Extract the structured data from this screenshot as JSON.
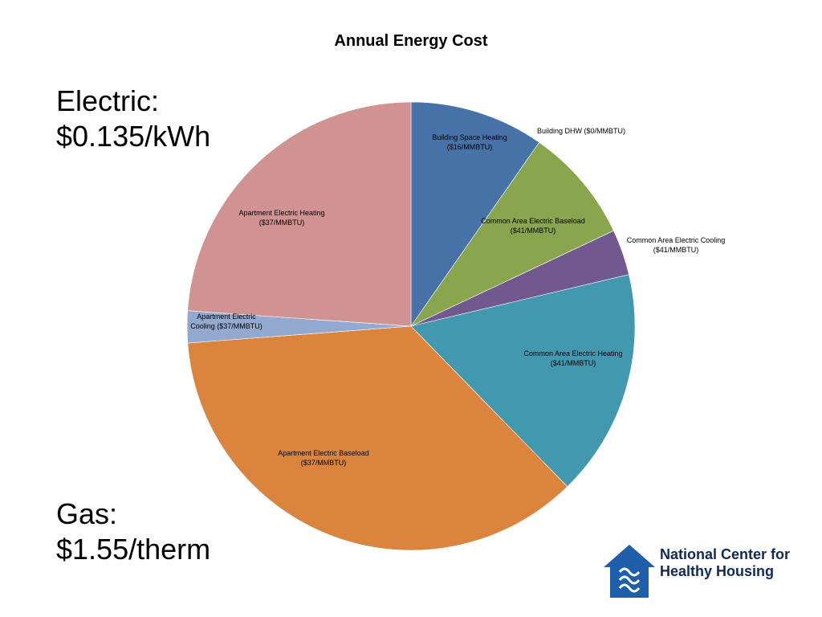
{
  "page": {
    "electric_label": "Electric:",
    "electric_rate": "$0.135/kWh",
    "gas_label": "Gas:",
    "gas_rate": "$1.55/therm"
  },
  "logo": {
    "line1": "National Center for",
    "line2": "Healthy Housing",
    "color": "#1f5ea8"
  },
  "chart_data": {
    "type": "pie",
    "title": "Annual Energy Cost",
    "start_angle_deg": 0,
    "direction": "clockwise",
    "slices": [
      {
        "label": [
          "Building Space Heating",
          "($16/MMBTU)"
        ],
        "value": 9.7,
        "color": "#4672a8"
      },
      {
        "label": [
          "Building DHW ($0/MMBTU)"
        ],
        "value": 0.0,
        "color": "#b4b4b4"
      },
      {
        "label": [
          "Common Area Electric Baseload",
          "($41/MMBTU)"
        ],
        "value": 8.3,
        "color": "#89a54e"
      },
      {
        "label": [
          "Common Area Electric Cooling",
          "($41/MMBTU)"
        ],
        "value": 3.3,
        "color": "#71588f"
      },
      {
        "label": [
          "Common Area Electric Heating",
          "($41/MMBTU)"
        ],
        "value": 16.4,
        "color": "#4198af"
      },
      {
        "label": [
          "Apartment Electric Baseload",
          "($37/MMBTU)"
        ],
        "value": 36.1,
        "color": "#db843d"
      },
      {
        "label": [
          "Apartment Electric",
          "Cooling ($37/MMBTU)"
        ],
        "value": 2.3,
        "color": "#93a9cf"
      },
      {
        "label": [
          "Apartment Electric Heating",
          "($37/MMBTU)"
        ],
        "value": 23.9,
        "color": "#d19392"
      }
    ]
  }
}
